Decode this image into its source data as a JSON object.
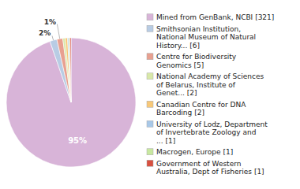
{
  "chart_data": {
    "type": "pie",
    "categories": [
      "Mined from GenBank, NCBI [321]",
      "Smithsonian Institution,\nNational Museum of Natural\nHistory... [6]",
      "Centre for Biodiversity\nGenomics [5]",
      "National Academy of Sciences\nof Belarus, Institute of\nGenet... [2]",
      "Canadian Centre for DNA\nBarcoding [2]",
      "University of Lodz, Department\nof Invertebrate Zoology and\n... [1]",
      "Macrogen, Europe [1]",
      "Government of Western\nAustralia, Dept of Fisheries [1]"
    ],
    "values": [
      94.69,
      1.77,
      1.47,
      0.59,
      0.59,
      0.29,
      0.29,
      0.29
    ],
    "value_labels": [
      "95%",
      "2%",
      "1%",
      null,
      null,
      null,
      null,
      null
    ],
    "colors": [
      "#d8b4d8",
      "#b8cce4",
      "#e8a090",
      "#d8e8a8",
      "#f8c878",
      "#a8c8e8",
      "#c8e8a0",
      "#d85040"
    ],
    "data_labels": true,
    "legend": "right"
  }
}
